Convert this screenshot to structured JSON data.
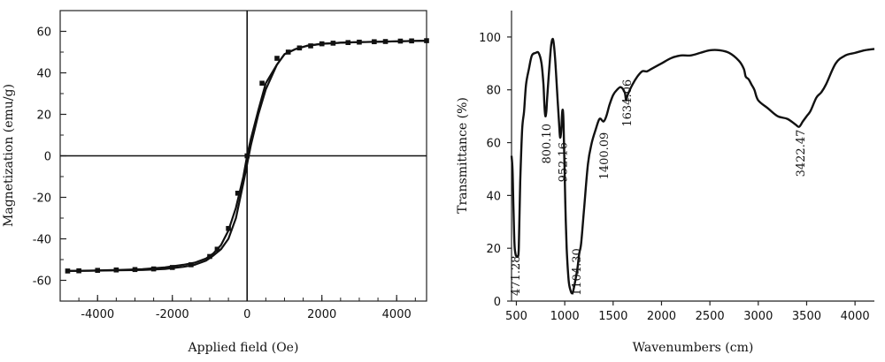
{
  "chart_data": [
    {
      "type": "line",
      "title": "",
      "xlabel": "Applied field (Oe)",
      "ylabel": "Magnetization (emu/g)",
      "xlim": [
        -5000,
        4800
      ],
      "ylim": [
        -70,
        70
      ],
      "xticks": [
        -4000,
        -2000,
        0,
        2000,
        4000
      ],
      "xtick_labels": [
        "-4000",
        "-2000",
        "0",
        "2000",
        "4000"
      ],
      "yticks": [
        -60,
        -40,
        -20,
        0,
        20,
        40,
        60
      ],
      "ytick_labels": [
        "-60",
        "-40",
        "-20",
        "0",
        "20",
        "40",
        "60"
      ],
      "zero_lines": true,
      "grid": false,
      "series": [
        {
          "curve": "hysteresis-loop",
          "x": [
            -4800,
            -4200,
            -3500,
            -2800,
            -2200,
            -1700,
            -1400,
            -1100,
            -900,
            -700,
            -500,
            -300,
            -100,
            0,
            100,
            300,
            500,
            800,
            1000,
            1300,
            1600,
            2000,
            2500,
            3000,
            3500,
            4000,
            4500,
            4800
          ],
          "y_descending": [
            -55.5,
            -55.3,
            -55,
            -54.6,
            -53.8,
            -52.5,
            -51.5,
            -49.5,
            -47,
            -43,
            -36,
            -25,
            -10,
            0,
            8,
            22,
            35,
            44,
            49,
            51.5,
            53,
            54,
            54.5,
            54.8,
            55,
            55.2,
            55.4,
            55.5
          ],
          "y_ascending": [
            -55.5,
            -55.4,
            -55.2,
            -55,
            -54.5,
            -53.5,
            -52.5,
            -50.5,
            -48,
            -45,
            -40,
            -30,
            -13,
            -4,
            5,
            20,
            32,
            44,
            49,
            51.5,
            53,
            54,
            54.5,
            54.8,
            55,
            55.2,
            55.4,
            55.5
          ],
          "marker_x": [
            -4800,
            -4500,
            -4000,
            -3500,
            -3000,
            -2500,
            -2000,
            -1500,
            -1000,
            -800,
            -500,
            -250,
            0,
            400,
            800,
            1100,
            1400,
            1700,
            2000,
            2300,
            2700,
            3000,
            3400,
            3700,
            4100,
            4400,
            4800
          ],
          "marker_y": [
            -55.5,
            -55.4,
            -55.2,
            -55,
            -54.8,
            -54.5,
            -53.8,
            -52.5,
            -48.5,
            -45,
            -35,
            -18,
            0,
            35,
            47,
            50,
            52,
            53,
            54,
            54.3,
            54.6,
            54.8,
            55,
            55.1,
            55.3,
            55.4,
            55.5
          ]
        }
      ]
    },
    {
      "type": "line",
      "title": "",
      "xlabel": "Wavenumbers (cm)",
      "ylabel": "Transmittance (%)",
      "xlim": [
        450,
        4200
      ],
      "ylim": [
        0,
        110
      ],
      "xticks": [
        500,
        1000,
        1500,
        2000,
        2500,
        3000,
        3500,
        4000
      ],
      "xtick_labels": [
        "500",
        "1000",
        "1500",
        "2000",
        "2500",
        "3000",
        "3500",
        "4000"
      ],
      "yticks": [
        0,
        20,
        40,
        60,
        80,
        100
      ],
      "ytick_labels": [
        "0",
        "20",
        "40",
        "60",
        "80",
        "100"
      ],
      "grid": false,
      "series": [
        {
          "x": [
            450,
            460,
            470,
            480,
            490,
            500,
            510,
            525,
            540,
            560,
            580,
            600,
            630,
            660,
            700,
            730,
            760,
            780,
            790,
            800,
            810,
            820,
            840,
            860,
            880,
            900,
            920,
            940,
            952,
            965,
            975,
            985,
            995,
            1005,
            1020,
            1040,
            1060,
            1080,
            1100,
            1110,
            1130,
            1150,
            1170,
            1200,
            1240,
            1280,
            1320,
            1360,
            1400,
            1430,
            1460,
            1500,
            1540,
            1580,
            1620,
            1634,
            1650,
            1700,
            1750,
            1800,
            1850,
            1900,
            2000,
            2100,
            2200,
            2300,
            2400,
            2500,
            2600,
            2700,
            2800,
            2850,
            2870,
            2900,
            2930,
            2960,
            3000,
            3100,
            3200,
            3300,
            3380,
            3422,
            3460,
            3500,
            3540,
            3600,
            3650,
            3700,
            3800,
            3900,
            4000,
            4100,
            4200
          ],
          "y": [
            55,
            50,
            35,
            22,
            18,
            17,
            17,
            20,
            45,
            65,
            72,
            82,
            88,
            93,
            94,
            94,
            90,
            82,
            74,
            70,
            72,
            78,
            88,
            97,
            99,
            92,
            80,
            68,
            62,
            65,
            72,
            70,
            55,
            38,
            20,
            8,
            4,
            3,
            6,
            8,
            12,
            18,
            22,
            35,
            52,
            60,
            65,
            69,
            68,
            70,
            74,
            78,
            80,
            81,
            79,
            76,
            78,
            82,
            85,
            87,
            87,
            88,
            90,
            92,
            93,
            93,
            94,
            95,
            95,
            94,
            91,
            88,
            85,
            84,
            82,
            80,
            76,
            73,
            70,
            69,
            67,
            66,
            68,
            70,
            72,
            77,
            79,
            82,
            90,
            93,
            94,
            95,
            95.5
          ]
        }
      ],
      "annotations": [
        {
          "text": "471.28",
          "x": 497,
          "y": 2
        },
        {
          "text": "800.10",
          "x": 815,
          "y": 52
        },
        {
          "text": "952.16",
          "x": 983,
          "y": 45
        },
        {
          "text": "1104.30",
          "x": 1125,
          "y": 2
        },
        {
          "text": "1400.09",
          "x": 1410,
          "y": 46
        },
        {
          "text": "1634.06",
          "x": 1648,
          "y": 66
        },
        {
          "text": "3422.47",
          "x": 3440,
          "y": 47
        }
      ]
    }
  ]
}
